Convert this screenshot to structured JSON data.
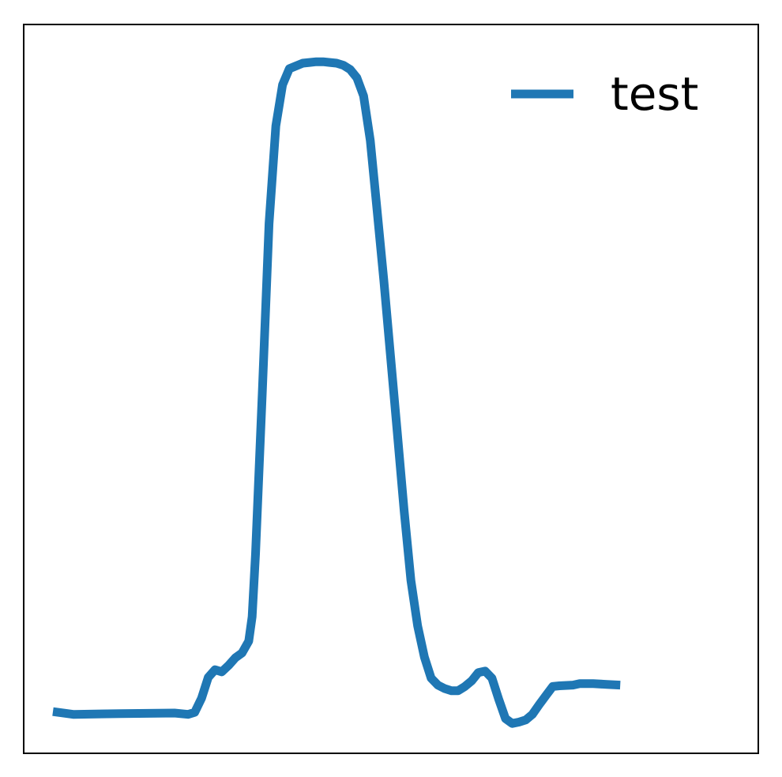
{
  "chart_data": {
    "type": "line",
    "title": "",
    "xlabel": "",
    "ylabel": "",
    "xlim": [
      0,
      100
    ],
    "ylim": [
      0,
      1
    ],
    "grid": false,
    "ticks": "none",
    "legend_position": "upper-right",
    "series": [
      {
        "name": "test",
        "color": "#1f77b4",
        "points": [
          [
            0,
            0.062
          ],
          [
            3,
            0.058
          ],
          [
            10,
            0.059
          ],
          [
            18,
            0.06
          ],
          [
            20,
            0.058
          ],
          [
            21,
            0.061
          ],
          [
            22,
            0.081
          ],
          [
            23,
            0.111
          ],
          [
            24,
            0.122
          ],
          [
            25,
            0.119
          ],
          [
            26,
            0.128
          ],
          [
            27,
            0.139
          ],
          [
            28,
            0.146
          ],
          [
            29,
            0.163
          ],
          [
            29.5,
            0.198
          ],
          [
            30,
            0.288
          ],
          [
            31,
            0.52
          ],
          [
            32,
            0.761
          ],
          [
            33,
            0.901
          ],
          [
            34,
            0.96
          ],
          [
            35,
            0.983
          ],
          [
            36,
            0.987
          ],
          [
            37,
            0.991
          ],
          [
            38,
            0.992
          ],
          [
            39,
            0.993
          ],
          [
            40,
            0.993
          ],
          [
            41,
            0.992
          ],
          [
            42,
            0.991
          ],
          [
            43,
            0.988
          ],
          [
            44,
            0.982
          ],
          [
            45,
            0.97
          ],
          [
            46,
            0.944
          ],
          [
            47,
            0.88
          ],
          [
            48,
            0.78
          ],
          [
            49,
            0.68
          ],
          [
            50,
            0.57
          ],
          [
            51,
            0.46
          ],
          [
            52,
            0.35
          ],
          [
            53,
            0.25
          ],
          [
            54,
            0.185
          ],
          [
            55,
            0.14
          ],
          [
            56,
            0.11
          ],
          [
            57,
            0.1
          ],
          [
            58,
            0.095
          ],
          [
            59,
            0.092
          ],
          [
            60,
            0.092
          ],
          [
            61,
            0.098
          ],
          [
            62,
            0.106
          ],
          [
            63,
            0.118
          ],
          [
            64,
            0.12
          ],
          [
            65,
            0.11
          ],
          [
            66,
            0.08
          ],
          [
            67,
            0.052
          ],
          [
            68,
            0.045
          ],
          [
            69,
            0.047
          ],
          [
            70,
            0.05
          ],
          [
            71,
            0.058
          ],
          [
            72,
            0.072
          ],
          [
            73,
            0.085
          ],
          [
            74,
            0.098
          ],
          [
            75,
            0.099
          ],
          [
            77,
            0.1
          ],
          [
            78,
            0.102
          ],
          [
            80,
            0.102
          ],
          [
            82,
            0.101
          ],
          [
            84,
            0.1
          ]
        ]
      }
    ]
  }
}
